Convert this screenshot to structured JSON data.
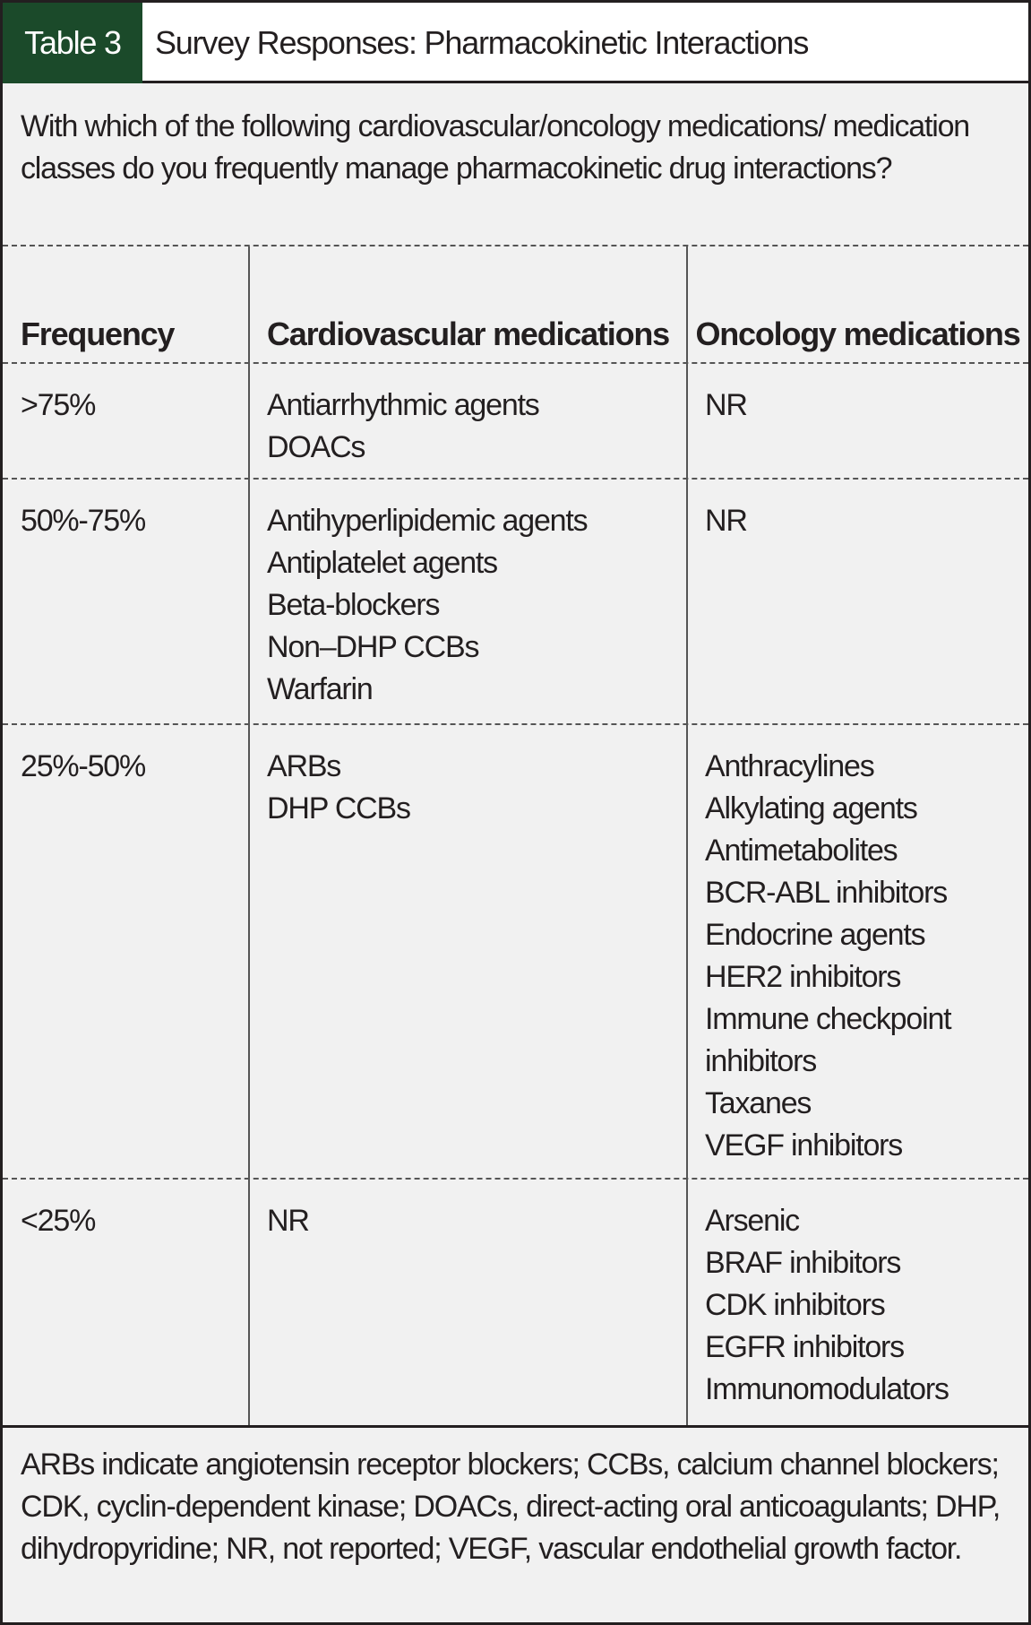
{
  "header": {
    "label": "Table 3",
    "title": "Survey Responses: Pharmacokinetic Interactions"
  },
  "question": "With which of the following cardiovascular/oncology medications/ medication classes do you frequently manage pharmacokinetic drug interactions?",
  "table": {
    "headers": [
      "Frequency",
      "Cardiovascular medications",
      "Oncology medications"
    ],
    "rows": [
      [
        ">75%",
        [
          "Antiarrhythmic agents",
          "DOACs"
        ],
        [
          "NR"
        ]
      ],
      [
        "50%-75%",
        [
          "Antihyperlipidemic agents",
          "Antiplatelet agents",
          "Beta-blockers",
          "Non–DHP CCBs",
          "Warfarin"
        ],
        [
          "NR"
        ]
      ],
      [
        "25%-50%",
        [
          "ARBs",
          "DHP CCBs"
        ],
        [
          "Anthracylines",
          "Alkylating agents",
          "Antimetabolites",
          "BCR-ABL inhibitors",
          "Endocrine agents",
          "HER2 inhibitors",
          "Immune checkpoint inhibitors",
          "Taxanes",
          "VEGF inhibitors"
        ]
      ],
      [
        "<25%",
        [
          "NR"
        ],
        [
          "Arsenic",
          "BRAF inhibitors",
          "CDK inhibitors",
          "EGFR inhibitors",
          "Immunomodulators"
        ]
      ]
    ]
  },
  "footnote": "ARBs indicate angiotensin receptor blockers; CCBs, calcium channel blockers; CDK, cyclin-dependent kinase; DOACs, direct-acting oral anticoagulants; DHP, dihydropyridine; NR, not reported; VEGF, vascular endothelial growth factor."
}
